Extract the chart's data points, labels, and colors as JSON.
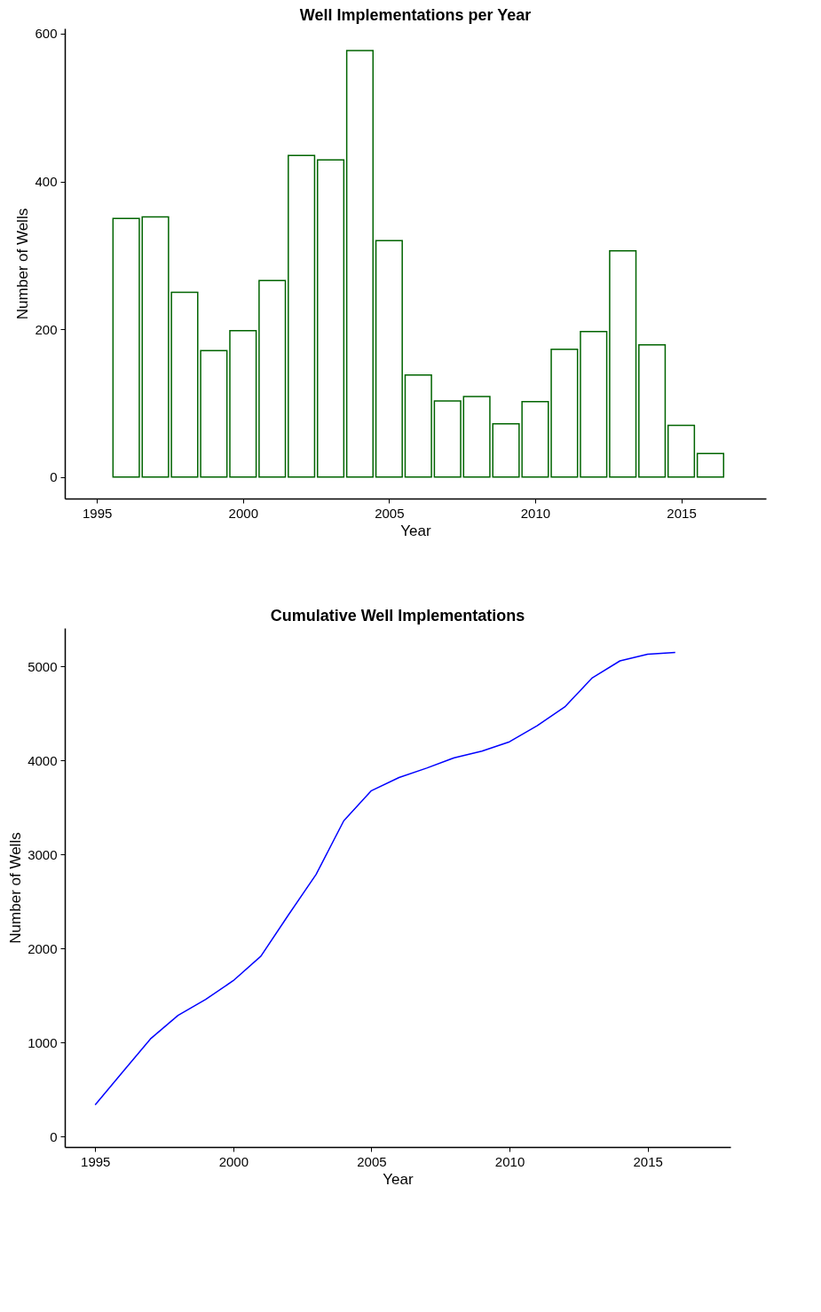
{
  "chart_data": [
    {
      "type": "bar",
      "title": "Well Implementations per Year",
      "xlabel": "Year",
      "ylabel": "Number of Wells",
      "x": [
        1996,
        1997,
        1998,
        1999,
        2000,
        2001,
        2002,
        2003,
        2004,
        2005,
        2006,
        2007,
        2008,
        2009,
        2010,
        2011,
        2012,
        2013,
        2014,
        2015,
        2016
      ],
      "values": [
        350,
        352,
        250,
        171,
        198,
        266,
        435,
        429,
        577,
        320,
        138,
        103,
        109,
        72,
        102,
        173,
        197,
        306,
        179,
        70,
        32
      ],
      "color": "#006400",
      "xlim": [
        1993.9,
        2017.9
      ],
      "xticks": [
        1995,
        2000,
        2005,
        2010,
        2015
      ],
      "ylim": [
        -29,
        607
      ],
      "yticks": [
        0,
        200,
        400,
        600
      ],
      "grid": false
    },
    {
      "type": "line",
      "title": "Cumulative Well Implementations",
      "xlabel": "Year",
      "ylabel": "Number of Wells",
      "x": [
        1995,
        1996,
        1997,
        1998,
        1999,
        2000,
        2001,
        2002,
        2003,
        2004,
        2005,
        2006,
        2007,
        2008,
        2009,
        2010,
        2011,
        2012,
        2013,
        2014,
        2015,
        2016
      ],
      "values": [
        340,
        690,
        1040,
        1290,
        1460,
        1660,
        1920,
        2360,
        2790,
        3360,
        3680,
        3820,
        3920,
        4030,
        4100,
        4200,
        4370,
        4570,
        4880,
        5060,
        5130,
        5150
      ],
      "color": "#0000ff",
      "xlim": [
        1993.9,
        2018
      ],
      "xticks": [
        1995,
        2000,
        2005,
        2010,
        2015
      ],
      "ylim": [
        -109,
        5409
      ],
      "yticks": [
        0,
        1000,
        2000,
        3000,
        4000,
        5000
      ],
      "grid": false
    }
  ]
}
